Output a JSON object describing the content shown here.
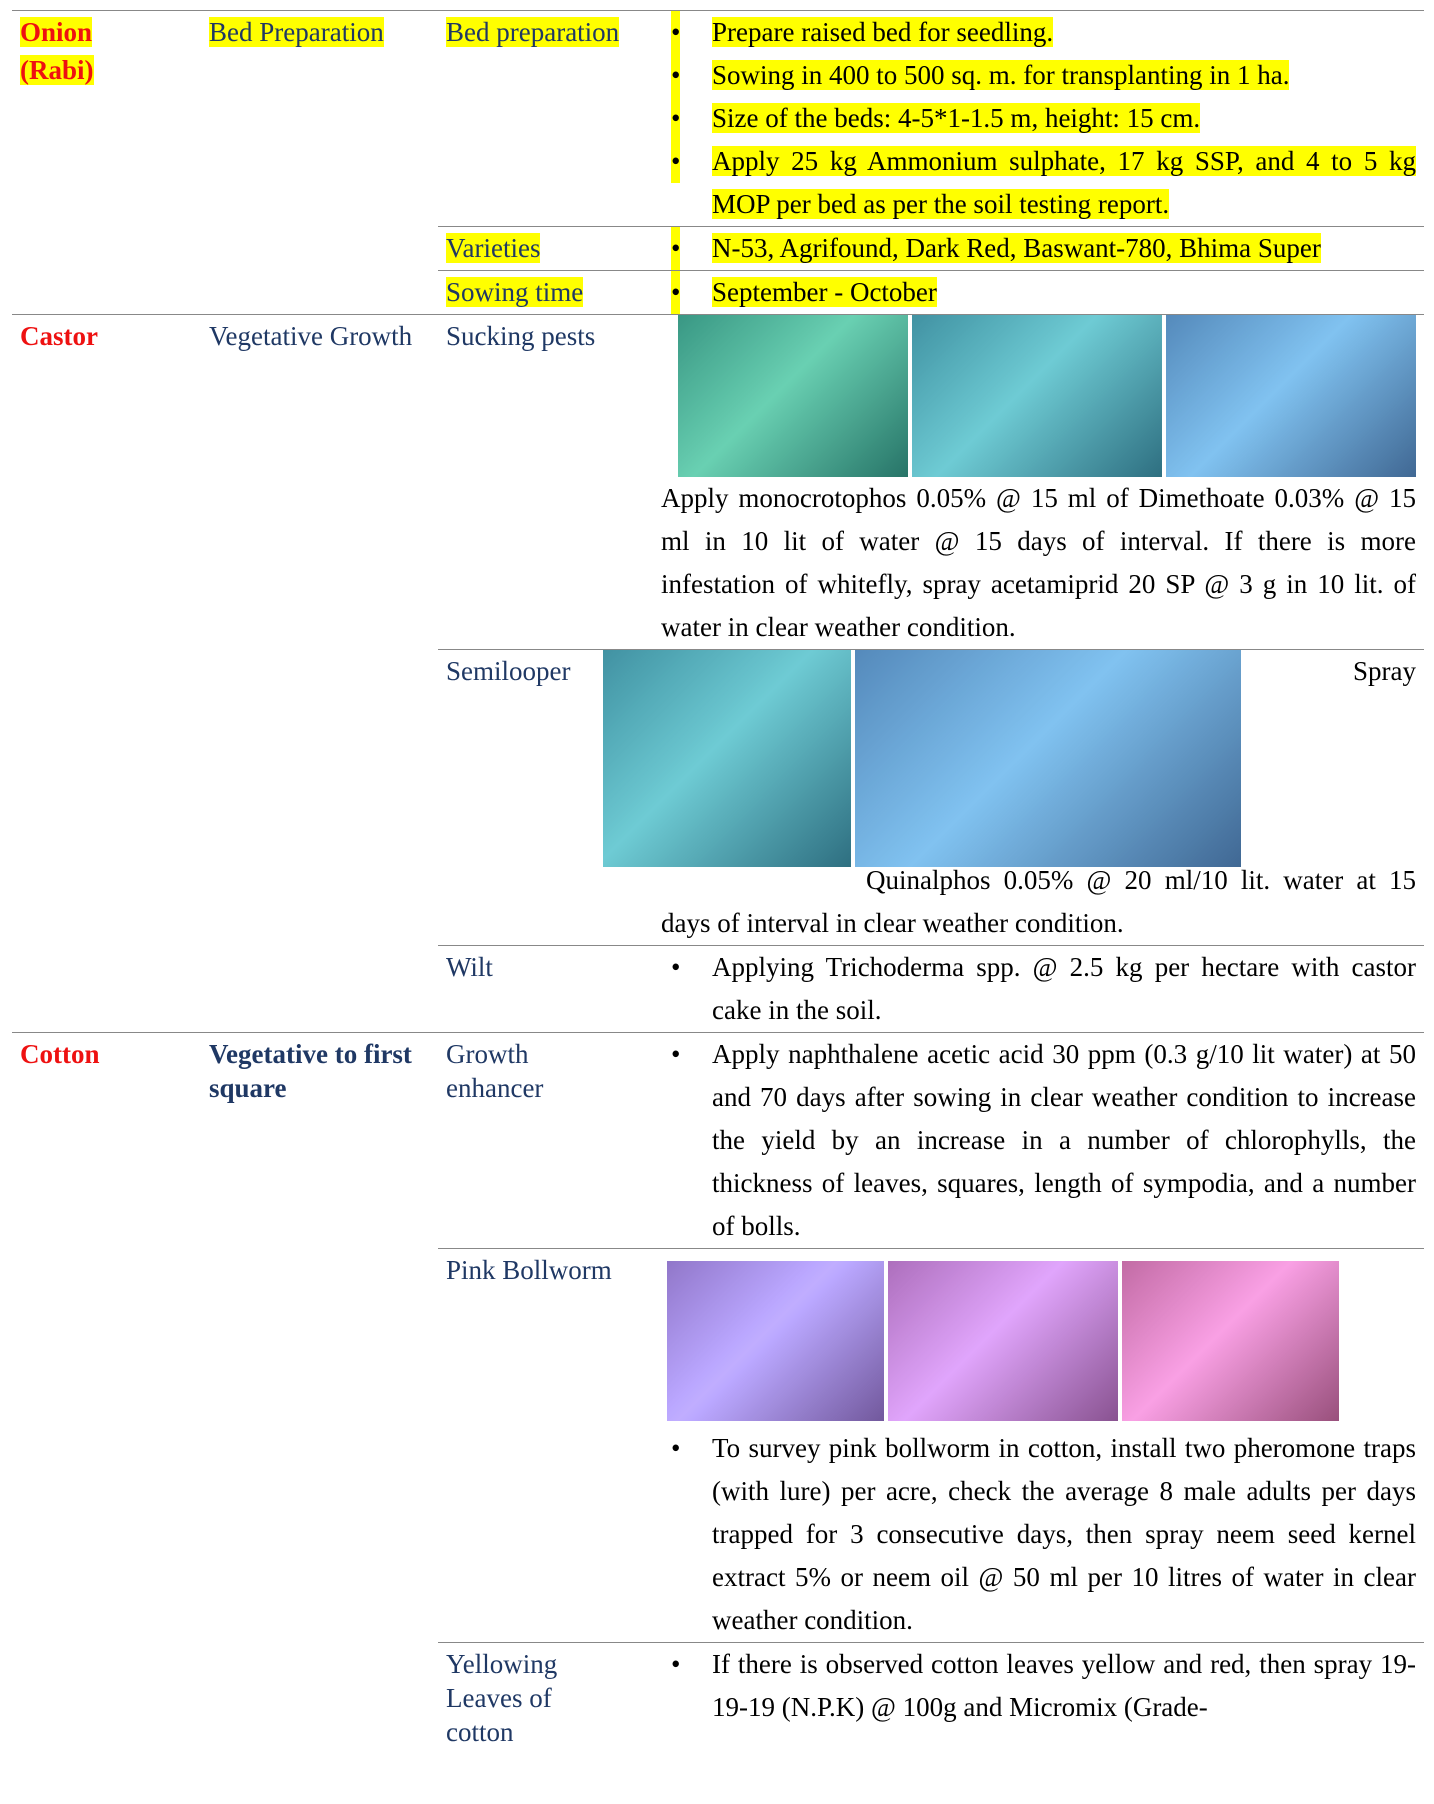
{
  "rows": [
    {
      "crop": "Onion (Rabi)",
      "stage": "Bed Preparation",
      "items": [
        {
          "issue": "Bed preparation",
          "bullets": [
            "Prepare raised bed for seedling.",
            "Sowing in 400 to 500 sq. m. for transplanting in 1 ha.",
            "Size of the beds: 4-5*1-1.5 m, height: 15 cm.",
            "Apply 25 kg Ammonium sulphate, 17 kg  SSP, and 4 to 5 kg MOP per bed as per the soil testing report."
          ]
        },
        {
          "issue": "Varieties",
          "bullets": [
            "N-53, Agrifound, Dark Red, Baswant-780, Bhima Super"
          ]
        },
        {
          "issue": "Sowing time",
          "bullets": [
            "September - October"
          ]
        }
      ]
    },
    {
      "crop": "Castor",
      "stage": "Vegetative Growth",
      "items": [
        {
          "issue": "Sucking pests",
          "text": [
            "Apply monocrotophos 0.05% @ 15 ml of Dimethoate 0.03% @ 15 ml in 10 lit of water @ 15 days of interval. If there is more infestation of whitefly, spray acetamiprid 20 SP @ 3 g in 10 lit. of water in clear weather condition."
          ]
        },
        {
          "issue": "Semilooper",
          "text": [
            "Spray",
            "Quinalphos 0.05% @ 20 ml/10 lit. water at 15 days of interval in clear weather condition."
          ]
        },
        {
          "issue": "Wilt",
          "bullets": [
            "Applying Trichoderma spp. @ 2.5 kg per hectare with castor cake in the soil."
          ]
        }
      ]
    },
    {
      "crop": "Cotton",
      "stage": "Vegetative to first square",
      "items": [
        {
          "issue": "Growth enhancer",
          "bullets": [
            "Apply naphthalene acetic acid 30 ppm (0.3 g/10 lit water) at 50 and 70 days after sowing in clear weather condition to increase the yield by an increase in a number of chlorophylls, the thickness of leaves, squares, length of sympodia, and a number of bolls."
          ]
        },
        {
          "issue": "Pink Bollworm",
          "bullets": [
            "To survey pink bollworm in cotton, install two pheromone traps (with lure) per acre, check the average 8 male adults per days trapped for 3 consecutive days, then spray neem seed kernel extract 5% or neem oil @ 50 ml per 10 litres of water in clear weather condition."
          ]
        },
        {
          "issue": "Yellowing Leaves of cotton",
          "bullets": [
            "If there is observed cotton leaves yellow and red, then spray 19-19-19 (N.P.K) @ 100g and Micromix (Grade-"
          ]
        }
      ]
    }
  ]
}
